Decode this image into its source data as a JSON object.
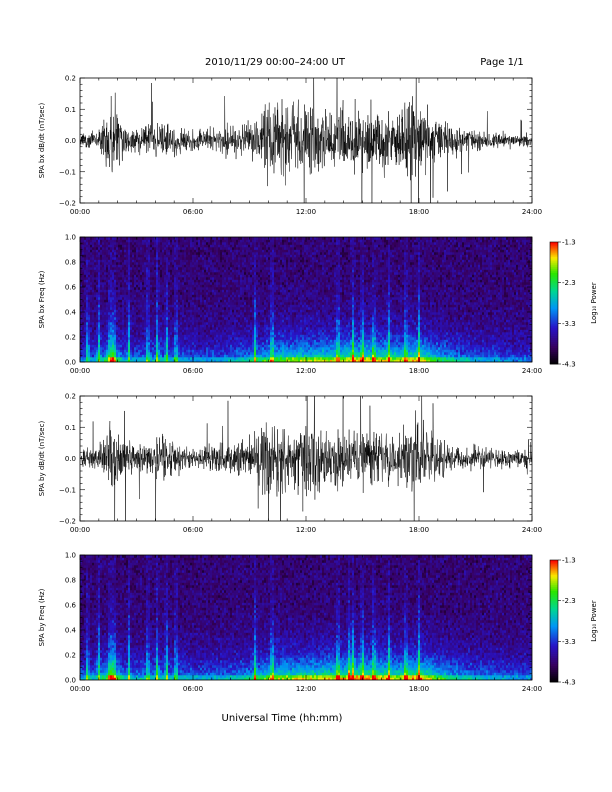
{
  "header": {
    "title": "2010/11/29  00:00–24:00 UT",
    "page": "Page 1/1"
  },
  "x_axis": {
    "label": "Universal Time (hh:mm)",
    "ticks": [
      {
        "h": 0,
        "label": "00:00"
      },
      {
        "h": 6,
        "label": "06:00"
      },
      {
        "h": 12,
        "label": "12:00"
      },
      {
        "h": 18,
        "label": "18:00"
      },
      {
        "h": 24,
        "label": "24:00"
      }
    ]
  },
  "colorbar": {
    "label": "Log₁₀ Power",
    "range": [
      -4.3,
      -1.3
    ],
    "ticks": [
      "-1.3",
      "-2.3",
      "-3.3",
      "-4.3"
    ],
    "tick_values": [
      -1.3,
      -2.3,
      -3.3,
      -4.3
    ]
  },
  "chart_data": [
    {
      "type": "line",
      "ylabel": "SPA bx dB/dt (nT/sec)",
      "xlim": [
        0,
        24
      ],
      "ylim": [
        -0.2,
        0.2
      ],
      "yticks": [
        {
          "v": 0.2,
          "label": "0.2"
        },
        {
          "v": 0.1,
          "label": "0.1"
        },
        {
          "v": 0.0,
          "label": "0.0"
        },
        {
          "v": -0.1,
          "label": "−0.1"
        },
        {
          "v": -0.2,
          "label": "−0.2"
        }
      ],
      "envelope": {
        "hours": [
          0,
          1,
          1.5,
          1.8,
          2.5,
          3,
          4,
          4.5,
          5,
          6,
          7,
          8,
          9,
          9.5,
          10,
          11,
          12,
          13,
          14,
          15,
          16,
          17,
          17.5,
          18,
          19,
          20,
          21,
          22,
          23,
          24
        ],
        "amplitude": [
          0.04,
          0.05,
          0.13,
          0.2,
          0.07,
          0.06,
          0.09,
          0.11,
          0.07,
          0.05,
          0.06,
          0.07,
          0.08,
          0.11,
          0.2,
          0.19,
          0.18,
          0.15,
          0.16,
          0.17,
          0.14,
          0.13,
          0.16,
          0.2,
          0.11,
          0.08,
          0.05,
          0.04,
          0.035,
          0.03
        ]
      }
    },
    {
      "type": "heatmap",
      "ylabel": "SPA bx Freq (Hz)",
      "xlim": [
        0,
        24
      ],
      "ylim": [
        0,
        1.0
      ],
      "yticks": [
        {
          "v": 1.0,
          "label": "1.0"
        },
        {
          "v": 0.8,
          "label": "0.8"
        },
        {
          "v": 0.6,
          "label": "0.6"
        },
        {
          "v": 0.4,
          "label": "0.4"
        },
        {
          "v": 0.2,
          "label": "0.2"
        },
        {
          "v": 0.0,
          "label": "0.0"
        }
      ],
      "zlim": [
        -4.3,
        -1.3
      ],
      "activity": {
        "hours": [
          0,
          1,
          1.7,
          2.5,
          4,
          5,
          6,
          8,
          9.5,
          10,
          11,
          12,
          13,
          14,
          15,
          16,
          17,
          18,
          19,
          20,
          21,
          22,
          23,
          24
        ],
        "level": [
          0.35,
          0.45,
          0.85,
          0.4,
          0.5,
          0.45,
          0.4,
          0.45,
          0.6,
          0.75,
          0.8,
          0.85,
          0.85,
          0.9,
          0.95,
          0.9,
          0.85,
          0.95,
          0.7,
          0.55,
          0.45,
          0.4,
          0.35,
          0.35
        ]
      },
      "streaks_h": [
        0.4,
        1.0,
        1.6,
        1.8,
        2.6,
        3.6,
        4.1,
        4.6,
        5.1,
        9.3,
        10.2,
        13.7,
        14.5,
        15.0,
        15.6,
        16.4,
        17.3,
        18.0
      ]
    },
    {
      "type": "line",
      "ylabel": "SPA by dB/dt (nT/sec)",
      "xlim": [
        0,
        24
      ],
      "ylim": [
        -0.2,
        0.2
      ],
      "yticks": [
        {
          "v": 0.2,
          "label": "0.2"
        },
        {
          "v": 0.1,
          "label": "0.1"
        },
        {
          "v": 0.0,
          "label": "0.0"
        },
        {
          "v": -0.1,
          "label": "−0.1"
        },
        {
          "v": -0.2,
          "label": "−0.2"
        }
      ],
      "envelope": {
        "hours": [
          0,
          1,
          1.5,
          1.8,
          2.5,
          3,
          4,
          4.5,
          5,
          6,
          7,
          8,
          9,
          9.5,
          10,
          11,
          12,
          13,
          14,
          15,
          16,
          17,
          17.5,
          18,
          19,
          20,
          21,
          22,
          23,
          24
        ],
        "amplitude": [
          0.05,
          0.06,
          0.15,
          0.2,
          0.08,
          0.07,
          0.1,
          0.13,
          0.08,
          0.05,
          0.07,
          0.09,
          0.09,
          0.13,
          0.19,
          0.18,
          0.2,
          0.16,
          0.15,
          0.14,
          0.14,
          0.13,
          0.17,
          0.2,
          0.1,
          0.07,
          0.06,
          0.05,
          0.045,
          0.04
        ]
      }
    },
    {
      "type": "heatmap",
      "ylabel": "SPA by Freq (Hz)",
      "xlim": [
        0,
        24
      ],
      "ylim": [
        0,
        1.0
      ],
      "yticks": [
        {
          "v": 1.0,
          "label": "1.0"
        },
        {
          "v": 0.8,
          "label": "0.8"
        },
        {
          "v": 0.6,
          "label": "0.6"
        },
        {
          "v": 0.4,
          "label": "0.4"
        },
        {
          "v": 0.2,
          "label": "0.2"
        },
        {
          "v": 0.0,
          "label": "0.0"
        }
      ],
      "zlim": [
        -4.3,
        -1.3
      ],
      "activity": {
        "hours": [
          0,
          1,
          1.7,
          2.5,
          4,
          5,
          6,
          8,
          9.5,
          10,
          11,
          12,
          13,
          14,
          15,
          16,
          17,
          18,
          19,
          20,
          21,
          22,
          23,
          24
        ],
        "level": [
          0.4,
          0.5,
          0.9,
          0.45,
          0.55,
          0.5,
          0.45,
          0.5,
          0.65,
          0.8,
          0.85,
          0.9,
          0.9,
          0.95,
          1.0,
          0.95,
          0.9,
          1.0,
          0.75,
          0.6,
          0.5,
          0.45,
          0.4,
          0.4
        ]
      },
      "streaks_h": [
        0.4,
        1.0,
        1.6,
        1.8,
        2.6,
        3.6,
        4.1,
        4.6,
        5.1,
        9.3,
        10.2,
        13.7,
        14.3,
        14.5,
        15.0,
        15.6,
        16.4,
        17.3,
        18.0
      ]
    }
  ]
}
